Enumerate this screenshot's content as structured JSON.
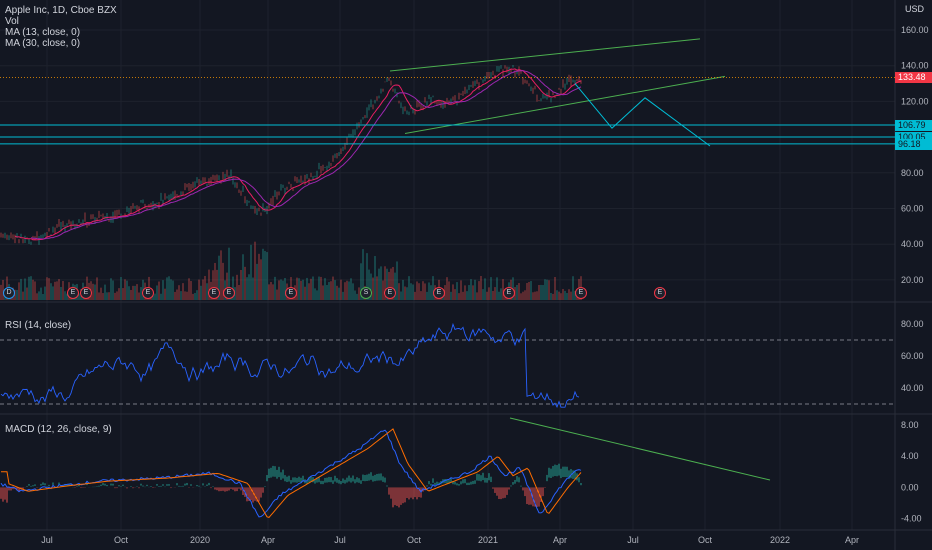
{
  "header": {
    "symbol_line": "Apple Inc, 1D, Cboe BZX",
    "indicators": [
      "Vol",
      "MA (13, close, 0)",
      "MA (30, close, 0)"
    ],
    "currency": "USD"
  },
  "rsi_panel": {
    "label": "RSI (14, close)"
  },
  "macd_panel": {
    "label": "MACD (12, 26, close, 9)"
  },
  "price_axis": {
    "ticks": [
      "160.00",
      "140.00",
      "120.00",
      "100.00",
      "80.00",
      "60.00",
      "40.00",
      "20.00"
    ],
    "price_badges": [
      {
        "text": "133.48",
        "color": "#f23645"
      },
      {
        "text": "106.79",
        "color": "#00bcd4"
      },
      {
        "text": "100.05",
        "color": "#00bcd4"
      },
      {
        "text": "96.18",
        "color": "#00bcd4"
      }
    ]
  },
  "rsi_axis": {
    "ticks": [
      "80.00",
      "60.00",
      "40.00"
    ]
  },
  "macd_axis": {
    "ticks": [
      "8.00",
      "4.00",
      "0.00",
      "-4.00"
    ]
  },
  "time_axis": {
    "labels": [
      "Jul",
      "Oct",
      "2020",
      "Apr",
      "Jul",
      "Oct",
      "2021",
      "Apr",
      "Jul",
      "Oct",
      "2022",
      "Apr"
    ]
  },
  "events": [
    "D",
    "E",
    "E",
    "E",
    "E",
    "E",
    "E",
    "S",
    "E",
    "E",
    "E",
    "E"
  ],
  "colors": {
    "background": "#131722",
    "grid": "#1e222d",
    "up": "#26a69a",
    "down": "#ef5350",
    "ma13": "#e91e63",
    "ma30": "#9c27b0",
    "rsi": "#2962ff",
    "macd": "#2962ff",
    "signal": "#ff6d00",
    "trendline": "#4caf50",
    "support": "#00bcd4"
  }
}
